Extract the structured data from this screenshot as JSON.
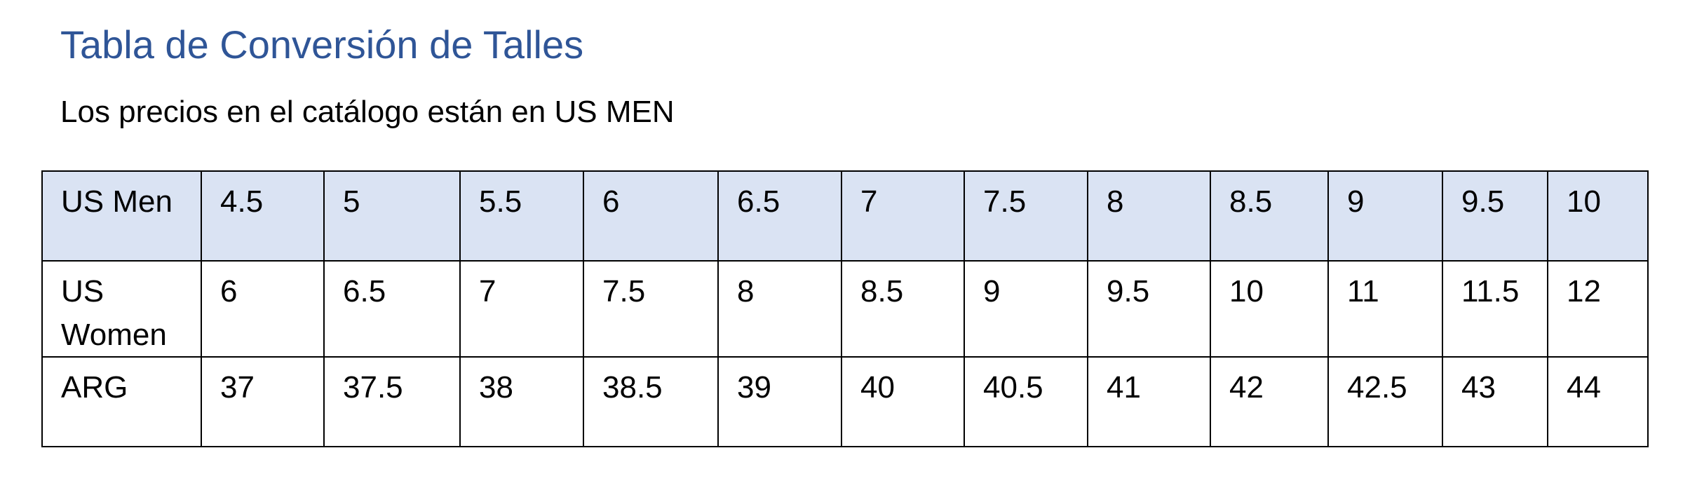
{
  "document": {
    "title": "Tabla de Conversión de Talles",
    "subtitle": "Los precios en el catálogo están en US MEN"
  },
  "table": {
    "rows": [
      {
        "label": "US Men",
        "values": [
          "4.5",
          "5",
          "5.5",
          "6",
          "6.5",
          "7",
          "7.5",
          "8",
          "8.5",
          "9",
          "9.5",
          "10"
        ]
      },
      {
        "label": "US Women",
        "values": [
          "6",
          "6.5",
          "7",
          "7.5",
          "8",
          "8.5",
          "9",
          "9.5",
          "10",
          "11",
          "11.5",
          "12"
        ]
      },
      {
        "label": "ARG",
        "values": [
          "37",
          "37.5",
          "38",
          "38.5",
          "39",
          "40",
          "40.5",
          "41",
          "42",
          "42.5",
          "43",
          "44"
        ]
      }
    ]
  },
  "colors": {
    "title": "#2f5597",
    "header_fill": "#dae3f3",
    "border": "#000000"
  }
}
